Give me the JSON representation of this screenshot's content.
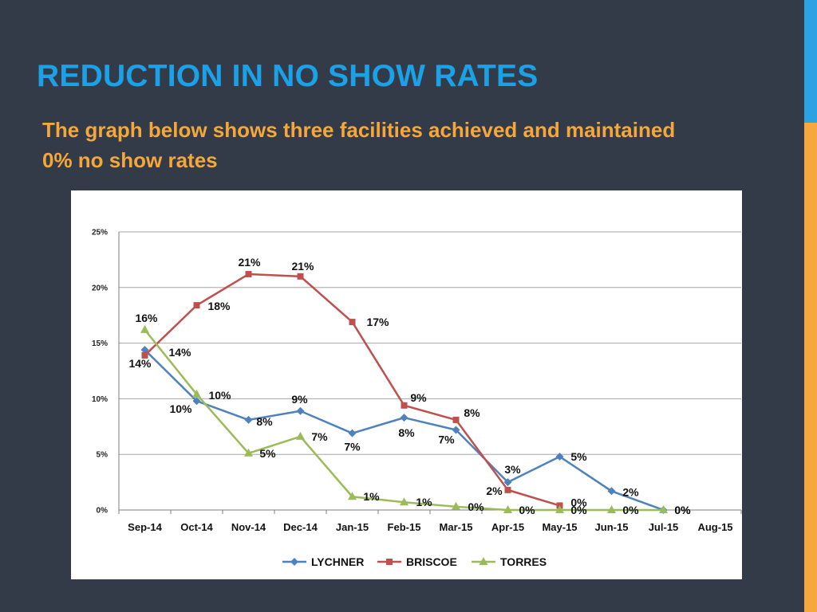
{
  "slide": {
    "title": "REDUCTION IN NO SHOW RATES",
    "subtitle": "The graph below shows three facilities achieved and maintained 0% no show rates"
  },
  "colors": {
    "background": "#343b48",
    "title": "#1aa1e8",
    "subtitle": "#f4a83a",
    "accent_top": "#2ba3e3",
    "accent_bottom": "#f5a93c"
  },
  "chart_data": {
    "type": "line",
    "title": "",
    "xlabel": "",
    "ylabel": "",
    "categories": [
      "Sep-14",
      "Oct-14",
      "Nov-14",
      "Dec-14",
      "Jan-15",
      "Feb-15",
      "Mar-15",
      "Apr-15",
      "May-15",
      "Jun-15",
      "Jul-15",
      "Aug-15"
    ],
    "yticks": [
      "0%",
      "5%",
      "10%",
      "15%",
      "20%",
      "25%"
    ],
    "ylim": [
      0,
      25
    ],
    "grid": true,
    "legend_position": "bottom",
    "series": [
      {
        "name": "LYCHNER",
        "color": "#4f81bd",
        "marker": "diamond",
        "values": [
          14.4,
          9.8,
          8.1,
          8.9,
          6.9,
          8.3,
          7.2,
          2.5,
          4.8,
          1.7,
          0,
          null
        ],
        "labels": [
          "14%",
          "10%",
          "8%",
          "9%",
          "7%",
          "8%",
          "7%",
          "3%",
          "5%",
          "2%",
          "0%",
          null
        ]
      },
      {
        "name": "BRISCOE",
        "color": "#c0504d",
        "marker": "square",
        "values": [
          13.9,
          18.4,
          21.2,
          21.0,
          16.9,
          9.4,
          8.1,
          1.8,
          0.4,
          null,
          null,
          null
        ],
        "labels": [
          "14%",
          "18%",
          "21%",
          "21%",
          "17%",
          "9%",
          "8%",
          "2%",
          "0%",
          null,
          null,
          null
        ]
      },
      {
        "name": "TORRES",
        "color": "#9bbb59",
        "marker": "triangle",
        "values": [
          16.2,
          10.4,
          5.1,
          6.6,
          1.2,
          0.7,
          0.3,
          0,
          0,
          0,
          0,
          null
        ],
        "labels": [
          "16%",
          "10%",
          "5%",
          "7%",
          "1%",
          "1%",
          "0%",
          "0%",
          "0%",
          "0%",
          "0%",
          null
        ]
      }
    ]
  }
}
